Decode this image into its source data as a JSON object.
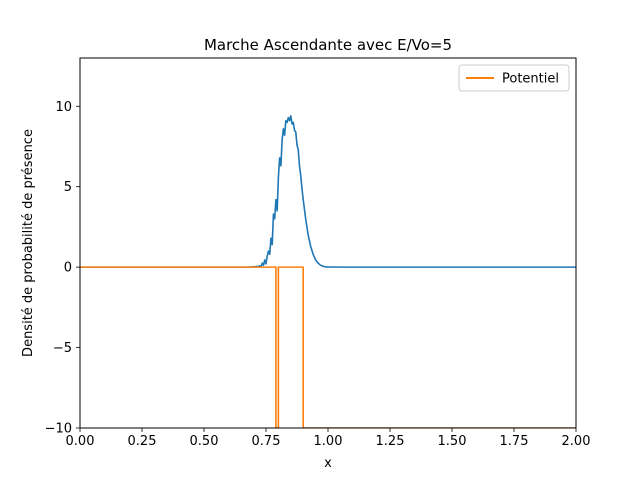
{
  "chart_data": {
    "type": "line",
    "title": "Marche Ascendante avec E/Vo=5",
    "xlabel": "x",
    "ylabel": "Densité de probabilité de présence",
    "xlim": [
      0,
      2
    ],
    "ylim": [
      -10,
      13
    ],
    "xticks": [
      0,
      0.25,
      0.5,
      0.75,
      1.0,
      1.25,
      1.5,
      1.75,
      2.0
    ],
    "xtick_labels": [
      "0.00",
      "0.25",
      "0.50",
      "0.75",
      "1.00",
      "1.25",
      "1.50",
      "1.75",
      "2.00"
    ],
    "yticks": [
      -10,
      -5,
      0,
      5,
      10
    ],
    "ytick_labels": [
      "−10",
      "−5",
      "0",
      "5",
      "10"
    ],
    "grid": false,
    "legend": {
      "placement": "top-right",
      "entries": [
        "Potentiel"
      ]
    },
    "series": [
      {
        "color": "#1f77b4",
        "x": [
          0,
          0.68,
          0.7,
          0.72,
          0.725,
          0.73,
          0.735,
          0.74,
          0.745,
          0.75,
          0.755,
          0.76,
          0.765,
          0.77,
          0.775,
          0.78,
          0.785,
          0.79,
          0.795,
          0.8,
          0.805,
          0.81,
          0.815,
          0.82,
          0.825,
          0.83,
          0.835,
          0.84,
          0.845,
          0.85,
          0.855,
          0.86,
          0.865,
          0.87,
          0.875,
          0.88,
          0.885,
          0.89,
          0.895,
          0.9,
          0.91,
          0.92,
          0.93,
          0.94,
          0.95,
          0.96,
          0.97,
          0.98,
          0.99,
          1.0,
          1.05,
          2.0
        ],
        "values": [
          0,
          0,
          0.02,
          0.05,
          0.08,
          0.05,
          0.25,
          0.12,
          0.45,
          0.2,
          0.7,
          1.0,
          0.8,
          1.8,
          1.4,
          3.3,
          3.0,
          4.2,
          3.5,
          5.6,
          6.8,
          6.3,
          7.9,
          8.6,
          8.2,
          9.1,
          9.0,
          9.3,
          9.1,
          9.4,
          8.9,
          9.0,
          8.5,
          8.4,
          7.6,
          7.3,
          6.3,
          5.7,
          4.9,
          4.2,
          3.0,
          2.0,
          1.3,
          0.8,
          0.45,
          0.25,
          0.12,
          0.05,
          0.02,
          0.01,
          0,
          0
        ]
      },
      {
        "name": "Potentiel",
        "color": "#ff7f0e",
        "x": [
          0,
          0.79,
          0.79,
          0.8,
          0.8,
          0.9,
          0.9,
          2.0
        ],
        "values": [
          0,
          0,
          -10,
          -10,
          0,
          0,
          -10,
          -10
        ]
      }
    ]
  }
}
